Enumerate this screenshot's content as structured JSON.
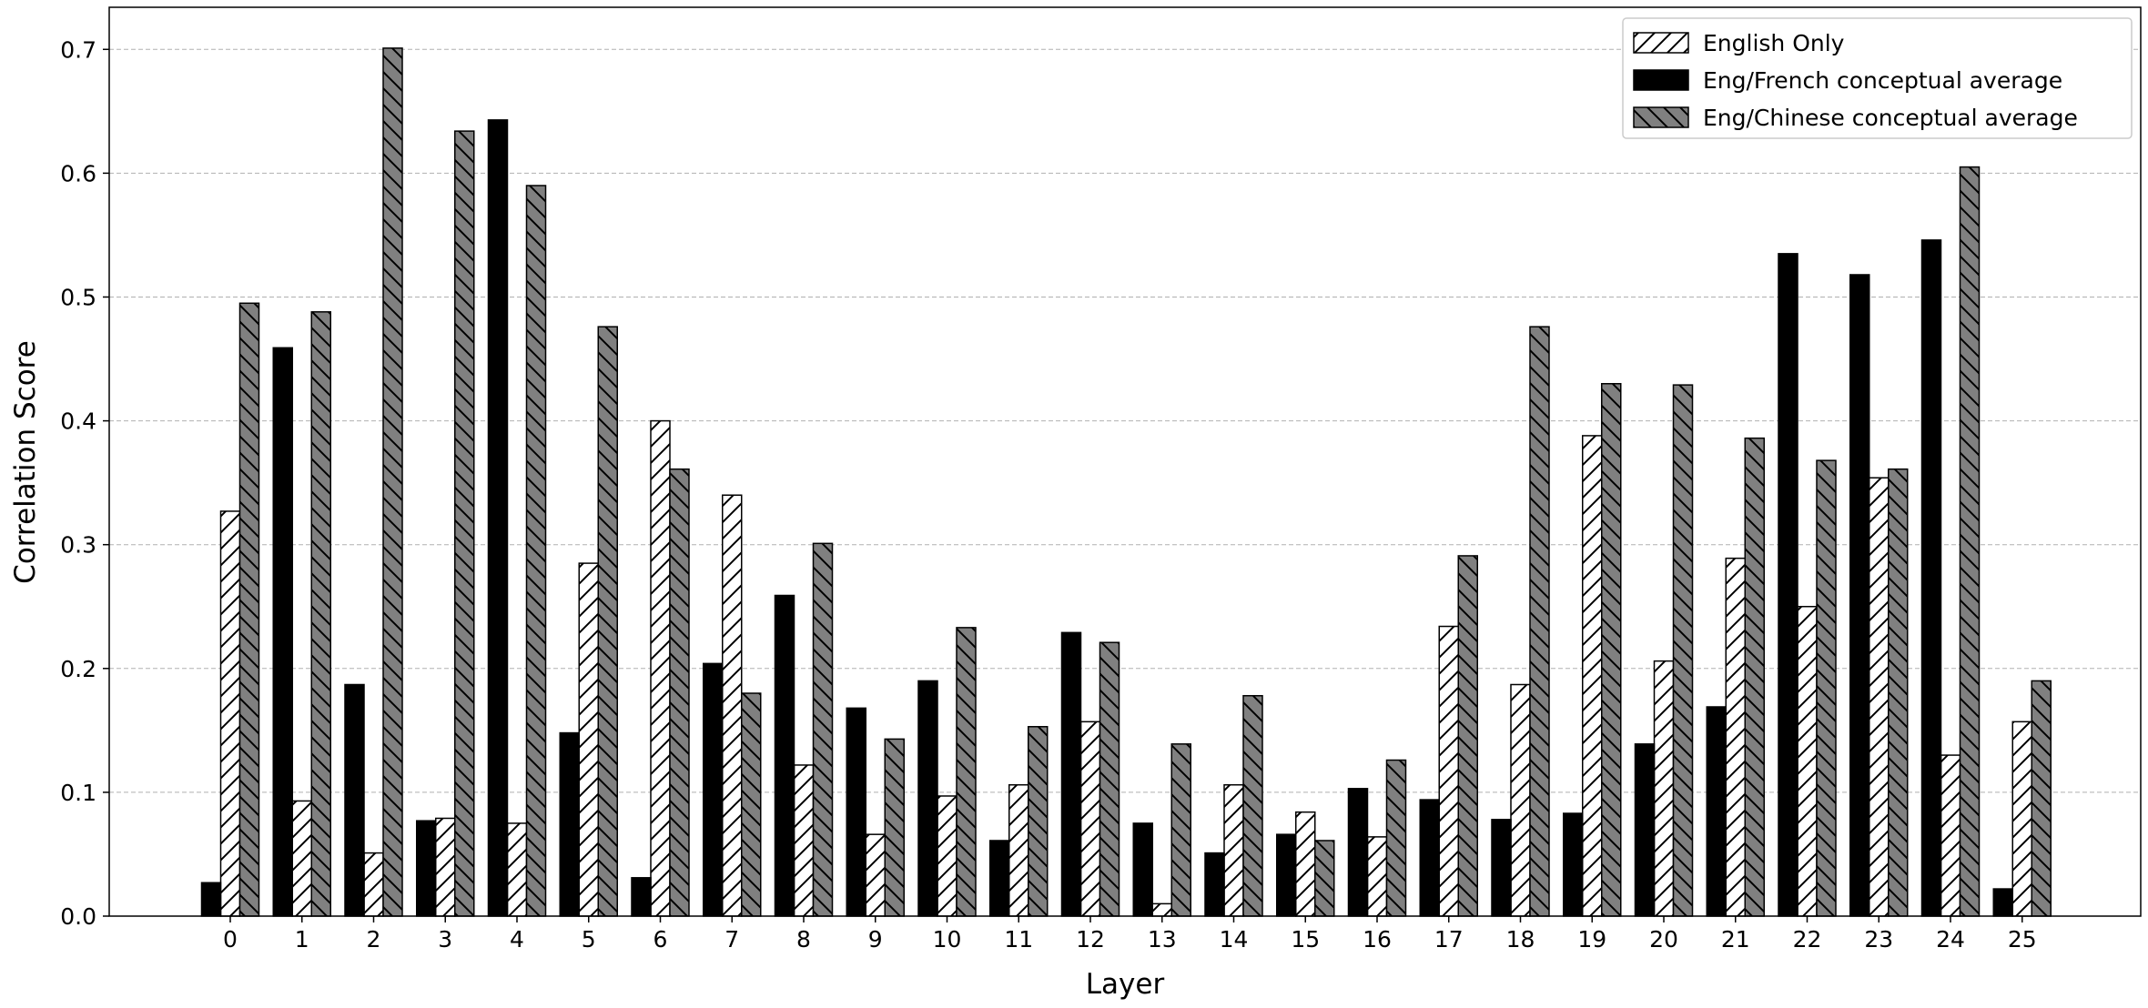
{
  "chart_data": {
    "type": "bar",
    "x_label": "Layer",
    "y_label": "Correlation Score",
    "categories": [
      "0",
      "1",
      "2",
      "3",
      "4",
      "5",
      "6",
      "7",
      "8",
      "9",
      "10",
      "11",
      "12",
      "13",
      "14",
      "15",
      "16",
      "17",
      "18",
      "19",
      "20",
      "21",
      "22",
      "23",
      "24",
      "25"
    ],
    "series": [
      {
        "name": "English Only",
        "color": "#ffffff",
        "hatch": "/",
        "values": [
          0.327,
          0.093,
          0.051,
          0.079,
          0.075,
          0.285,
          0.4,
          0.34,
          0.122,
          0.066,
          0.097,
          0.106,
          0.157,
          0.01,
          0.106,
          0.084,
          0.064,
          0.234,
          0.187,
          0.388,
          0.206,
          0.289,
          0.25,
          0.354,
          0.13,
          0.157
        ]
      },
      {
        "name": "Eng/French conceptual average",
        "color": "#000000",
        "values": [
          0.027,
          0.459,
          0.187,
          0.077,
          0.643,
          0.148,
          0.031,
          0.204,
          0.259,
          0.168,
          0.19,
          0.061,
          0.229,
          0.075,
          0.051,
          0.066,
          0.103,
          0.094,
          0.078,
          0.083,
          0.139,
          0.169,
          0.535,
          0.518,
          0.546,
          0.022
        ]
      },
      {
        "name": "Eng/Chinese conceptual average",
        "color": "#808080",
        "hatch": "\\",
        "values": [
          0.495,
          0.488,
          0.701,
          0.634,
          0.59,
          0.476,
          0.361,
          0.18,
          0.301,
          0.143,
          0.233,
          0.153,
          0.221,
          0.139,
          0.178,
          0.061,
          0.126,
          0.291,
          0.476,
          0.43,
          0.429,
          0.386,
          0.368,
          0.361,
          0.605,
          0.19
        ]
      }
    ],
    "ylim": [
      0,
      0.734
    ],
    "yticks": [
      {
        "value": 0,
        "label": "0.0"
      },
      0.1,
      0.2,
      0.3,
      0.4,
      0.5,
      0.6,
      0.7
    ],
    "grid": true,
    "legend": "upper right"
  }
}
